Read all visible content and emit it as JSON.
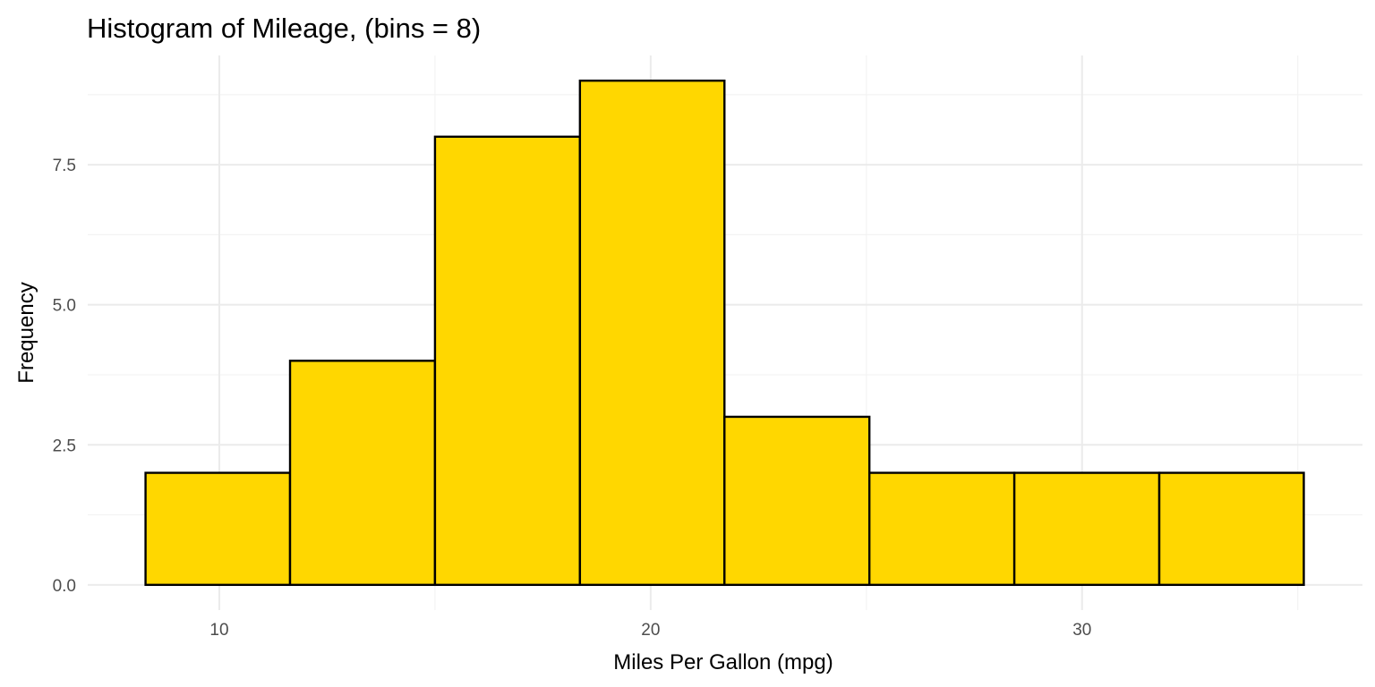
{
  "chart_data": {
    "type": "bar",
    "subtype": "histogram",
    "title": "Histogram of Mileage, (bins = 8)",
    "xlabel": "Miles Per Gallon (mpg)",
    "ylabel": "Frequency",
    "bins": [
      {
        "x0": 8.29,
        "x1": 11.64,
        "count": 2
      },
      {
        "x0": 11.64,
        "x1": 15.0,
        "count": 4
      },
      {
        "x0": 15.0,
        "x1": 18.36,
        "count": 8
      },
      {
        "x0": 18.36,
        "x1": 21.71,
        "count": 9
      },
      {
        "x0": 21.71,
        "x1": 25.07,
        "count": 3
      },
      {
        "x0": 25.07,
        "x1": 28.43,
        "count": 2
      },
      {
        "x0": 28.43,
        "x1": 31.79,
        "count": 2
      },
      {
        "x0": 31.79,
        "x1": 35.14,
        "count": 2
      }
    ],
    "xlim": [
      6.95,
      36.5
    ],
    "ylim": [
      -0.45,
      9.45
    ],
    "x_ticks": [
      10,
      20,
      30
    ],
    "x_tick_labels": [
      "10",
      "20",
      "30"
    ],
    "y_ticks": [
      0,
      2.5,
      5,
      7.5
    ],
    "y_tick_labels": [
      "0.0",
      "2.5",
      "5.0",
      "7.5"
    ],
    "fill_color": "#FFD700",
    "outline_color": "#000000",
    "grid": true,
    "legend": "none"
  }
}
